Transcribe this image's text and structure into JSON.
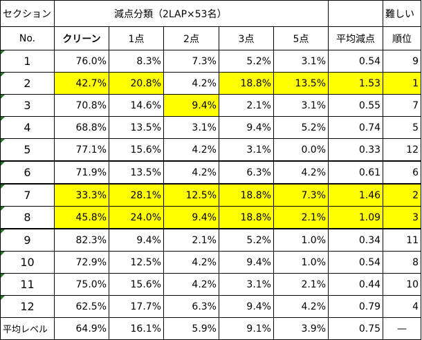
{
  "header": {
    "section_label": "セクション",
    "group_label": "減点分類（2LAP×53名）",
    "difficulty_label": "難しい",
    "no_label": "No.",
    "columns": [
      "クリーン",
      "1点",
      "2点",
      "3点",
      "5点",
      "平均減点",
      "順位"
    ]
  },
  "rows": [
    {
      "no": "1",
      "clean": "76.0%",
      "p1": "8.3%",
      "p2": "7.3%",
      "p3": "5.2%",
      "p5": "3.1%",
      "avg": "0.54",
      "rank": "9"
    },
    {
      "no": "2",
      "clean": "42.7%",
      "p1": "20.8%",
      "p2": "4.2%",
      "p3": "18.8%",
      "p5": "13.5%",
      "avg": "1.53",
      "rank": "1"
    },
    {
      "no": "3",
      "clean": "70.8%",
      "p1": "14.6%",
      "p2": "9.4%",
      "p3": "2.1%",
      "p5": "3.1%",
      "avg": "0.55",
      "rank": "7"
    },
    {
      "no": "4",
      "clean": "68.8%",
      "p1": "13.5%",
      "p2": "3.1%",
      "p3": "9.4%",
      "p5": "5.2%",
      "avg": "0.74",
      "rank": "5"
    },
    {
      "no": "5",
      "clean": "77.1%",
      "p1": "15.6%",
      "p2": "4.2%",
      "p3": "3.1%",
      "p5": "0.0%",
      "avg": "0.33",
      "rank": "12"
    },
    {
      "no": "6",
      "clean": "71.9%",
      "p1": "13.5%",
      "p2": "4.2%",
      "p3": "6.3%",
      "p5": "4.2%",
      "avg": "0.61",
      "rank": "6"
    },
    {
      "no": "7",
      "clean": "33.3%",
      "p1": "28.1%",
      "p2": "12.5%",
      "p3": "18.8%",
      "p5": "7.3%",
      "avg": "1.46",
      "rank": "2"
    },
    {
      "no": "8",
      "clean": "45.8%",
      "p1": "24.0%",
      "p2": "9.4%",
      "p3": "18.8%",
      "p5": "2.1%",
      "avg": "1.09",
      "rank": "3"
    },
    {
      "no": "9",
      "clean": "82.3%",
      "p1": "9.4%",
      "p2": "2.1%",
      "p3": "5.2%",
      "p5": "1.0%",
      "avg": "0.34",
      "rank": "11"
    },
    {
      "no": "10",
      "clean": "72.9%",
      "p1": "12.5%",
      "p2": "4.2%",
      "p3": "9.4%",
      "p5": "1.0%",
      "avg": "0.54",
      "rank": "8"
    },
    {
      "no": "11",
      "clean": "75.0%",
      "p1": "15.6%",
      "p2": "4.2%",
      "p3": "3.1%",
      "p5": "2.1%",
      "avg": "0.44",
      "rank": "10"
    },
    {
      "no": "12",
      "clean": "62.5%",
      "p1": "17.7%",
      "p2": "6.3%",
      "p3": "9.4%",
      "p5": "4.2%",
      "avg": "0.79",
      "rank": "4"
    }
  ],
  "footer": {
    "label": "平均レベル",
    "clean": "64.9%",
    "p1": "16.1%",
    "p2": "5.9%",
    "p3": "9.1%",
    "p5": "3.9%",
    "avg": "0.75",
    "rank": "—"
  },
  "highlight_color": "#ffff00",
  "marker_color": "#1f7a1f"
}
